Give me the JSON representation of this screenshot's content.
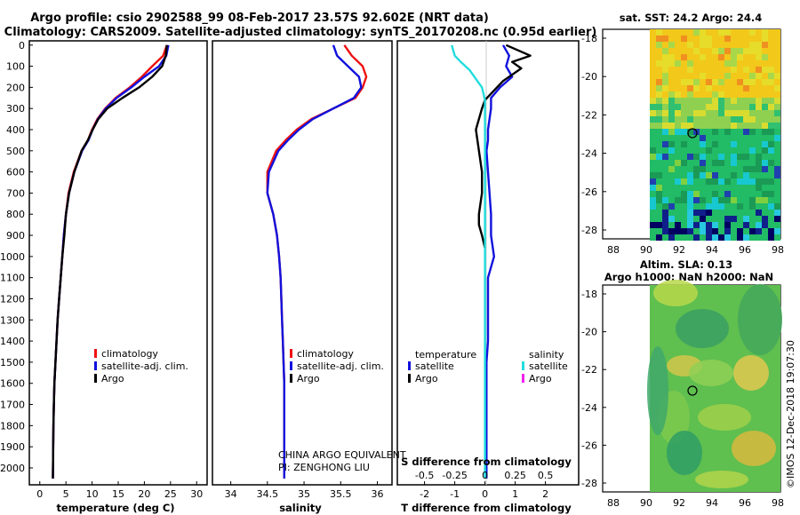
{
  "title": {
    "line1": "Argo profile: csio 2902588_99 08-Feb-2017 23.57S 92.602E (NRT data)",
    "line2": "Climatology: CARS2009. Satellite-adjusted climatology: synTS_20170208.nc (0.95d earlier)"
  },
  "depth_ticks": [
    "0",
    "100",
    "200",
    "300",
    "400",
    "500",
    "600",
    "700",
    "800",
    "900",
    "1000",
    "1100",
    "1200",
    "1300",
    "1400",
    "1500",
    "1600",
    "1700",
    "1800",
    "1900",
    "2000"
  ],
  "colors": {
    "climatology": "#ee1111",
    "satellite": "#1111dd",
    "argo": "#000000",
    "salinity_sat": "#22dddd",
    "salinity_argo": "#ee22ee"
  },
  "legend": {
    "climatology": "climatology",
    "satellite": "satellite-adj. clim.",
    "argo": "Argo"
  },
  "diff_legend": {
    "temperature": "temperature",
    "salinity": "salinity",
    "satellite": "satellite",
    "argo": "Argo"
  },
  "credit": {
    "line1": "CHINA ARGO EQUIVALENT",
    "line2": "PI: ZENGHONG LIU"
  },
  "map_sst": {
    "title": "sat. SST: 24.2 Argo: 24.4",
    "lat_ticks": [
      "-18",
      "-20",
      "-22",
      "-24",
      "-26",
      "-28"
    ],
    "lon_ticks": [
      "88",
      "90",
      "92",
      "94",
      "96",
      "98"
    ]
  },
  "map_sla": {
    "title1": "Altim. SLA: 0.13",
    "title2": "Argo h1000: NaN h2000: NaN",
    "lat_ticks": [
      "-18",
      "-20",
      "-22",
      "-24",
      "-26",
      "-28"
    ],
    "lon_ticks": [
      "88",
      "90",
      "92",
      "94",
      "96",
      "98"
    ]
  },
  "watermark": "©IMOS 12-Dec-2018 19:07:30",
  "chart_data": [
    {
      "type": "line",
      "name": "temperature",
      "xlabel": "temperature (deg C)",
      "ylabel": "depth",
      "xlim": [
        -2,
        32
      ],
      "ylim": [
        2080,
        -20
      ],
      "xticks": [
        "0",
        "5",
        "10",
        "15",
        "20",
        "25",
        "30"
      ],
      "series": [
        {
          "name": "climatology",
          "color": "#ee1111",
          "x": [
            24.3,
            23.6,
            21.5,
            19.5,
            17.2,
            14.5,
            12.5,
            11.0,
            10.0,
            9.2,
            8.0,
            6.5,
            5.5,
            5.0,
            4.6,
            4.3,
            4.0,
            3.7,
            3.4,
            3.2,
            3.0,
            2.8,
            2.7,
            2.6,
            2.5
          ],
          "y": [
            0,
            50,
            100,
            150,
            200,
            250,
            300,
            350,
            400,
            450,
            500,
            600,
            700,
            800,
            900,
            1000,
            1100,
            1200,
            1300,
            1400,
            1500,
            1600,
            1700,
            1800,
            2050
          ]
        },
        {
          "name": "satellite-adj. clim.",
          "color": "#1111dd",
          "x": [
            24.6,
            24.2,
            22.8,
            20.0,
            17.5,
            14.7,
            12.6,
            11.1,
            10.1,
            9.3,
            8.1,
            6.6,
            5.6,
            5.0,
            4.6,
            4.3,
            4.0,
            3.7,
            3.4,
            3.2,
            3.0,
            2.8,
            2.7,
            2.6,
            2.5
          ],
          "y": [
            0,
            50,
            100,
            150,
            200,
            250,
            300,
            350,
            400,
            450,
            500,
            600,
            700,
            800,
            900,
            1000,
            1100,
            1200,
            1300,
            1400,
            1500,
            1600,
            1700,
            1800,
            2050
          ]
        },
        {
          "name": "Argo",
          "color": "#000000",
          "x": [
            24.3,
            24.1,
            23.4,
            21.5,
            19.0,
            15.8,
            12.9,
            11.2,
            10.1,
            9.2,
            8.0,
            6.6,
            5.6,
            5.0,
            4.7,
            4.3,
            4.0,
            3.7,
            3.4,
            3.2,
            3.0,
            2.8,
            2.7,
            2.6,
            2.5
          ],
          "y": [
            0,
            50,
            100,
            150,
            200,
            250,
            300,
            350,
            400,
            450,
            500,
            600,
            700,
            800,
            900,
            1000,
            1100,
            1200,
            1300,
            1400,
            1500,
            1600,
            1700,
            1800,
            2050
          ]
        }
      ]
    },
    {
      "type": "line",
      "name": "salinity",
      "xlabel": "salinity",
      "xlim": [
        33.75,
        36.2
      ],
      "ylim": [
        2080,
        -20
      ],
      "xticks": [
        "34",
        "34.5",
        "35",
        "35.5",
        "36"
      ],
      "series": [
        {
          "name": "climatology",
          "color": "#ee1111",
          "x": [
            35.55,
            35.65,
            35.8,
            35.85,
            35.8,
            35.7,
            35.4,
            35.1,
            34.9,
            34.75,
            34.62,
            34.5,
            34.5,
            34.58,
            34.63,
            34.66,
            34.68,
            34.69,
            34.7,
            34.71,
            34.72,
            34.73,
            34.73,
            34.73,
            34.73
          ],
          "y": [
            0,
            50,
            100,
            150,
            200,
            250,
            300,
            350,
            400,
            450,
            500,
            600,
            700,
            800,
            900,
            1000,
            1100,
            1200,
            1300,
            1400,
            1500,
            1600,
            1700,
            1800,
            2050
          ]
        },
        {
          "name": "satellite-adj. clim.",
          "color": "#1111dd",
          "x": [
            35.4,
            35.45,
            35.6,
            35.75,
            35.78,
            35.68,
            35.4,
            35.12,
            34.93,
            34.78,
            34.65,
            34.52,
            34.5,
            34.58,
            34.63,
            34.66,
            34.68,
            34.69,
            34.7,
            34.71,
            34.72,
            34.73,
            34.73,
            34.73,
            34.73
          ],
          "y": [
            0,
            50,
            100,
            150,
            200,
            250,
            300,
            350,
            400,
            450,
            500,
            600,
            700,
            800,
            900,
            1000,
            1100,
            1200,
            1300,
            1400,
            1500,
            1600,
            1700,
            1800,
            2050
          ]
        }
      ]
    },
    {
      "type": "line",
      "name": "difference",
      "xlabel": "T difference from climatology",
      "xlabel_top": "S difference from climatology",
      "xlim": [
        -2.9,
        3.1
      ],
      "ylim": [
        2080,
        -20
      ],
      "xticks": [
        "-2",
        "-1",
        "0",
        "1",
        "2"
      ],
      "xticks_top": [
        "-0.5",
        "-0.25",
        "0",
        "0.25",
        "0.5"
      ],
      "series": [
        {
          "name": "temperature satellite",
          "color": "#1111dd",
          "x": [
            0.6,
            0.8,
            0.7,
            0.9,
            0.5,
            0.2,
            0.2,
            0.15,
            0.1,
            0.1,
            0.05,
            0.1,
            0.15,
            0.2,
            0.2,
            0.3,
            0.1,
            0.1,
            0.1,
            0.1,
            0.05,
            0.05,
            0.05,
            0.05,
            0.05
          ],
          "y": [
            0,
            50,
            100,
            150,
            200,
            250,
            300,
            350,
            400,
            450,
            500,
            600,
            700,
            800,
            900,
            1000,
            1100,
            1200,
            1300,
            1400,
            1500,
            1600,
            1700,
            1800,
            2050
          ]
        },
        {
          "name": "temperature Argo",
          "color": "#000000",
          "x": [
            0.7,
            1.5,
            0.9,
            1.2,
            0.6,
            0.0,
            -0.1,
            -0.2,
            -0.3,
            -0.2,
            -0.1,
            -0.1,
            -0.2,
            -0.2,
            -0.1,
            0.0
          ],
          "y": [
            0,
            50,
            80,
            110,
            170,
            260,
            300,
            350,
            400,
            500,
            600,
            700,
            800,
            850,
            900,
            960
          ]
        },
        {
          "name": "salinity satellite",
          "color": "#22dddd",
          "x": [
            -1.1,
            -1.0,
            -0.8,
            -0.5,
            -0.3,
            -0.1,
            0.0,
            0.0,
            0.0,
            0.0,
            0.0,
            0.0,
            0.0,
            0.0,
            0.0,
            0.0,
            0.0,
            0.0,
            0.0,
            0.0,
            0.0,
            0.0
          ],
          "y": [
            0,
            50,
            80,
            120,
            160,
            200,
            260,
            300,
            400,
            500,
            600,
            700,
            800,
            900,
            1000,
            1100,
            1200,
            1300,
            1400,
            1500,
            1600,
            2050
          ]
        }
      ]
    }
  ]
}
